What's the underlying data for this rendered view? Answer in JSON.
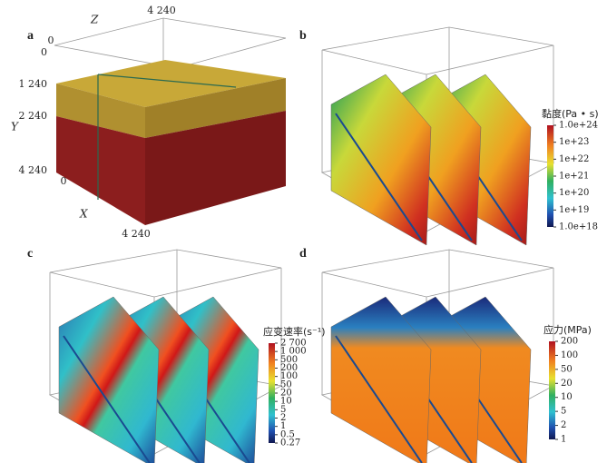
{
  "panels": [
    {
      "label": "a",
      "axis_labels": {
        "z": "Z",
        "y": "Y",
        "x": "X"
      },
      "z_ticks": [
        "0",
        "4 240"
      ],
      "y_ticks": [
        "0",
        "1 240",
        "2 240",
        "4 240"
      ],
      "x_ticks": [
        "0",
        "4 240"
      ]
    },
    {
      "label": "b",
      "colorbar": {
        "title": "黏度(Pa • s)",
        "ticks": [
          "1.0e+24",
          "1e+23",
          "1e+22",
          "1e+21",
          "1e+20",
          "1e+19",
          "1.0e+18"
        ]
      }
    },
    {
      "label": "c",
      "colorbar": {
        "title": "应变速率(s⁻¹)",
        "ticks": [
          "2 700",
          "1 000",
          "500",
          "200",
          "100",
          "50",
          "20",
          "10",
          "5",
          "2",
          "1",
          "0.5",
          "0.27"
        ]
      }
    },
    {
      "label": "d",
      "colorbar": {
        "title": "应力(MPa)",
        "ticks": [
          "200",
          "100",
          "50",
          "20",
          "10",
          "5",
          "2",
          "1"
        ]
      }
    }
  ]
}
